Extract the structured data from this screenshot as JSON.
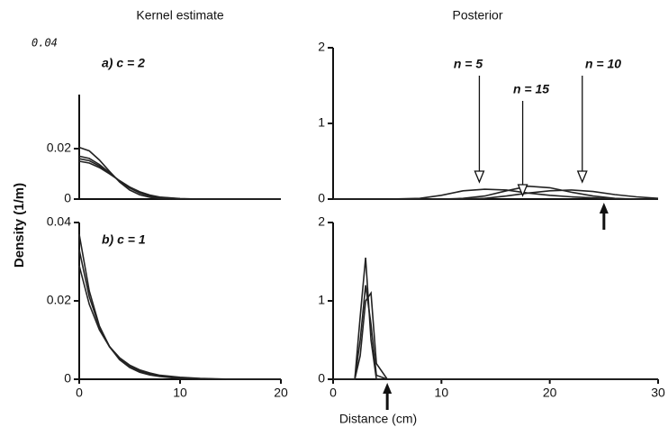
{
  "figure": {
    "ylabel": "Density (1/m)",
    "xlabel": "Distance (cm)"
  },
  "chart_data": [
    {
      "type": "line",
      "title": "Kernel estimate",
      "subtitle": "a) c = 2",
      "annotations": [
        {
          "text": "0.04"
        }
      ],
      "x": [
        0,
        1,
        2,
        3,
        4,
        5,
        6,
        7,
        8,
        10,
        12,
        15,
        20
      ],
      "series": [
        {
          "color": "#222",
          "values": [
            0.0205,
            0.0191,
            0.0155,
            0.011,
            0.0068,
            0.0036,
            0.0017,
            0.0007,
            0.0002,
            0,
            0,
            0,
            0
          ]
        },
        {
          "color": "#222",
          "values": [
            0.017,
            0.0161,
            0.0137,
            0.0105,
            0.0071,
            0.0044,
            0.0024,
            0.0012,
            0.0005,
            0.0001,
            0,
            0,
            0
          ]
        },
        {
          "color": "#222",
          "values": [
            0.016,
            0.0152,
            0.0131,
            0.0103,
            0.0073,
            0.0047,
            0.0027,
            0.0014,
            0.0007,
            0.0001,
            0,
            0,
            0
          ]
        },
        {
          "color": "#222",
          "values": [
            0.015,
            0.0143,
            0.0125,
            0.01,
            0.0073,
            0.0048,
            0.0029,
            0.0016,
            0.0008,
            0.0002,
            0,
            0,
            0
          ]
        }
      ],
      "xlim": [
        0,
        20
      ],
      "ylim": [
        0,
        0.04
      ],
      "yticks": [
        0,
        0.02
      ]
    },
    {
      "type": "line",
      "title": "Posterior",
      "annotations": [
        {
          "text": "n = 5",
          "x": 13.5
        },
        {
          "text": "n = 15",
          "x": 17.5
        },
        {
          "text": "n = 10",
          "x": 23
        }
      ],
      "true_value": 25,
      "x": [
        0,
        5,
        8,
        10,
        12,
        14,
        16,
        18,
        20,
        22,
        24,
        26,
        28,
        30
      ],
      "series": [
        {
          "color": "#222",
          "values": [
            0,
            0,
            0.01,
            0.05,
            0.11,
            0.13,
            0.12,
            0.08,
            0.05,
            0.03,
            0.015,
            0.005,
            0,
            0
          ]
        },
        {
          "color": "#222",
          "values": [
            0,
            0,
            0,
            0,
            0.01,
            0.04,
            0.11,
            0.17,
            0.15,
            0.09,
            0.04,
            0.01,
            0,
            0
          ]
        },
        {
          "color": "#222",
          "values": [
            0,
            0,
            0,
            0,
            0,
            0.01,
            0.04,
            0.08,
            0.11,
            0.12,
            0.1,
            0.06,
            0.03,
            0.01
          ]
        }
      ],
      "xlim": [
        0,
        30
      ],
      "ylim": [
        0,
        2
      ],
      "yticks": [
        0,
        1,
        2
      ]
    },
    {
      "type": "line",
      "subtitle": "b) c = 1",
      "x": [
        0,
        1,
        2,
        3,
        4,
        5,
        6,
        7,
        8,
        10,
        12,
        15,
        20
      ],
      "series": [
        {
          "color": "#222",
          "values": [
            0.037,
            0.0225,
            0.0136,
            0.0083,
            0.005,
            0.003,
            0.0018,
            0.0011,
            0.0007,
            0.0002,
            0.0001,
            0,
            0
          ]
        },
        {
          "color": "#222",
          "values": [
            0.033,
            0.021,
            0.0133,
            0.0084,
            0.0054,
            0.0034,
            0.0021,
            0.0014,
            0.0009,
            0.0004,
            0.0001,
            0,
            0
          ]
        },
        {
          "color": "#222",
          "values": [
            0.029,
            0.0191,
            0.0126,
            0.0083,
            0.0055,
            0.0036,
            0.0024,
            0.0016,
            0.001,
            0.0005,
            0.0002,
            0,
            0
          ]
        }
      ],
      "xlim": [
        0,
        20
      ],
      "xticks": [
        0,
        10,
        20
      ],
      "ylim": [
        0,
        0.04
      ],
      "yticks": [
        0,
        0.02,
        0.04
      ]
    },
    {
      "type": "line",
      "true_value": 5,
      "x": [
        0,
        2,
        2.5,
        3,
        3.5,
        4,
        5,
        10,
        20,
        30
      ],
      "series": [
        {
          "color": "#222",
          "values": [
            0,
            0,
            0.8,
            1.55,
            0.5,
            0,
            0,
            0,
            0,
            0
          ]
        },
        {
          "color": "#222",
          "values": [
            0,
            0,
            0.3,
            1.0,
            1.1,
            0.2,
            0,
            0,
            0,
            0
          ]
        },
        {
          "color": "#222",
          "values": [
            0,
            0,
            0.5,
            1.2,
            0.7,
            0.05,
            0,
            0,
            0,
            0
          ]
        }
      ],
      "xlim": [
        0,
        30
      ],
      "xticks": [
        0,
        10,
        20,
        30
      ],
      "ylim": [
        0,
        2
      ],
      "yticks": [
        0,
        1,
        2
      ]
    }
  ]
}
